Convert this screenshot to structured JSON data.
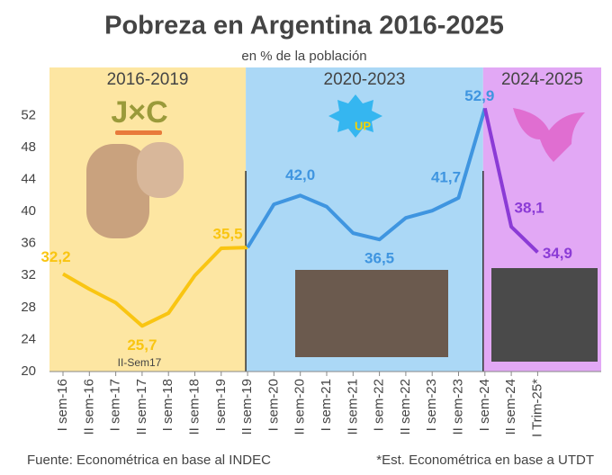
{
  "chart_data": {
    "type": "line",
    "title": "Pobreza en Argentina 2016-2025",
    "subtitle": "en % de la población",
    "categories": [
      "I sem-16",
      "II sem-16",
      "I sem-17",
      "II sem-17",
      "I sem-18",
      "II sem-18",
      "I sem-19",
      "II sem-19",
      "I sem-20",
      "II sem-20",
      "I sem-21",
      "II sem-21",
      "I sem-22",
      "II sem-22",
      "I sem-23",
      "II sem-23",
      "I sem-24",
      "II sem-24",
      "I Trim-25*"
    ],
    "series": [
      {
        "period": "2016-2019",
        "color": "#f9c512",
        "band_color": "#fde6a2",
        "values": [
          32.2,
          30.3,
          28.6,
          25.7,
          27.3,
          32.0,
          35.4,
          35.5,
          null,
          null,
          null,
          null,
          null,
          null,
          null,
          null,
          null,
          null,
          null
        ],
        "value_labels": [
          "32,2",
          null,
          null,
          "25,7",
          null,
          null,
          null,
          "35,5",
          null,
          null,
          null,
          null,
          null,
          null,
          null,
          null,
          null,
          null,
          null
        ]
      },
      {
        "period": "2020-2023",
        "color": "#3f95e0",
        "band_color": "#abd8f6",
        "values": [
          null,
          null,
          null,
          null,
          null,
          null,
          null,
          35.5,
          40.9,
          42.0,
          40.6,
          37.3,
          36.5,
          39.2,
          40.1,
          41.7,
          52.9,
          null,
          null
        ],
        "value_labels": [
          null,
          null,
          null,
          null,
          null,
          null,
          null,
          null,
          null,
          "42,0",
          null,
          null,
          "36,5",
          null,
          null,
          "41,7",
          "52,9",
          null,
          null
        ]
      },
      {
        "period": "2024-2025",
        "color": "#8b3bd6",
        "band_color": "#e2a8f5",
        "values": [
          null,
          null,
          null,
          null,
          null,
          null,
          null,
          null,
          null,
          null,
          null,
          null,
          null,
          null,
          null,
          null,
          52.9,
          38.1,
          34.9
        ],
        "value_labels": [
          null,
          null,
          null,
          null,
          null,
          null,
          null,
          null,
          null,
          null,
          null,
          null,
          null,
          null,
          null,
          null,
          null,
          "38,1",
          "34,9"
        ]
      }
    ],
    "annotations": [
      "II-Sem17",
      "J×C",
      "UP"
    ],
    "ylim": [
      20,
      58
    ],
    "yticks": [
      20,
      24,
      28,
      32,
      36,
      40,
      44,
      48,
      52
    ],
    "source": "Fuente: Econométrica en base al INDEC",
    "note": "*Est. Econométrica en base a UTDT"
  }
}
